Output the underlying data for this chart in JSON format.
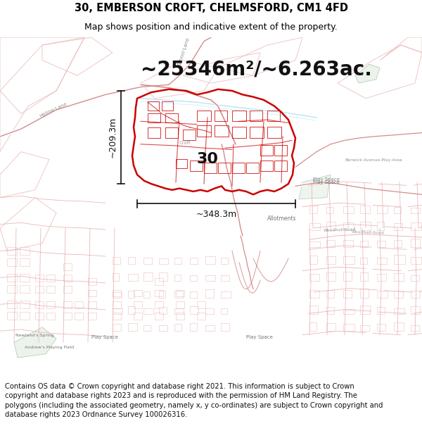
{
  "title_line1": "30, EMBERSON CROFT, CHELMSFORD, CM1 4FD",
  "title_line2": "Map shows position and indicative extent of the property.",
  "area_text": "~25346m²/~6.263ac.",
  "label_number": "30",
  "dim_vertical": "~209.3m",
  "dim_horizontal": "~348.3m",
  "footer_text": "Contains OS data © Crown copyright and database right 2021. This information is subject to Crown copyright and database rights 2023 and is reproduced with the permission of HM Land Registry. The polygons (including the associated geometry, namely x, y co-ordinates) are subject to Crown copyright and database rights 2023 Ordnance Survey 100026316.",
  "bg_color": "#ffffff",
  "map_bg_color": "#ffffff",
  "road_color": "#e8b0b0",
  "road_color_dark": "#d08080",
  "highlight_color": "#cc0000",
  "highlight_fill": "#ffffff",
  "green_area_color": "#e8f0e8",
  "blue_color": "#aaddee",
  "title_fontsize": 10.5,
  "subtitle_fontsize": 9,
  "area_fontsize": 20,
  "label_fontsize": 16,
  "dim_fontsize": 9,
  "footer_fontsize": 7.2
}
